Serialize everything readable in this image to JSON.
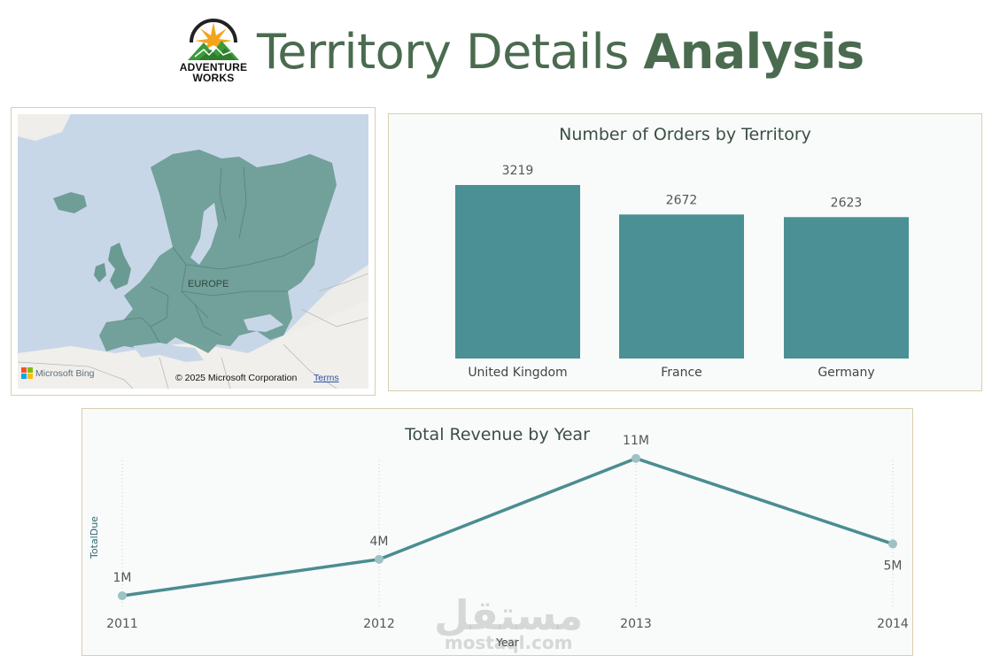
{
  "header": {
    "brand_line1": "ADVENTURE",
    "brand_line2": "WORKS",
    "title_light": "Territory Details",
    "title_bold": "Analysis"
  },
  "map": {
    "region_label": "EUROPE",
    "provider": "Microsoft Bing",
    "copyright": "© 2025 Microsoft Corporation",
    "terms": "Terms"
  },
  "colors": {
    "bar": "#4a9094",
    "line": "#4a8d90",
    "title": "#4a6b4f",
    "panel_border": "#d8cfae"
  },
  "chart_data": [
    {
      "type": "bar",
      "title": "Number of Orders by Territory",
      "categories": [
        "United Kingdom",
        "France",
        "Germany"
      ],
      "values": [
        3219,
        2672,
        2623
      ],
      "data_labels": [
        "3219",
        "2672",
        "2623"
      ],
      "xlabel": "",
      "ylabel": "",
      "ylim": [
        0,
        3219
      ],
      "grid": false
    },
    {
      "type": "line",
      "title": "Total Revenue by Year",
      "x": [
        "2011",
        "2012",
        "2013",
        "2014"
      ],
      "values": [
        1.2,
        3.8,
        11.0,
        4.9
      ],
      "data_labels": [
        "1M",
        "4M",
        "11M",
        "5M"
      ],
      "xlabel": "Year",
      "ylabel": "TotalDue",
      "ylim": [
        0,
        12
      ],
      "grid": "vertical dotted"
    }
  ],
  "watermark": {
    "arabic": "مستقل",
    "latin": "mostaql.com"
  }
}
